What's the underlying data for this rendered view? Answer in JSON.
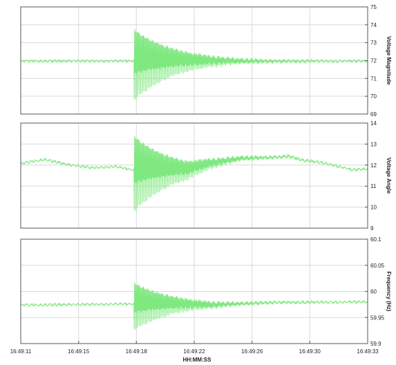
{
  "figure": {
    "xlabel": "HH:MM:SS",
    "x_ticks": [
      "16:49:11",
      "16:49:15",
      "16:49:18",
      "16:49:22",
      "16:49:26",
      "16:49:30",
      "16:49:33"
    ],
    "line_color": "#7fe87f",
    "axis_color": "#555555",
    "grid_color": "#d8d8d8"
  },
  "chart_data": [
    {
      "type": "line",
      "ylabel": "Voltage Magnitude",
      "ylim": [
        69,
        75
      ],
      "y_ticks": [
        "69",
        "70",
        "71",
        "72",
        "73",
        "74",
        "75"
      ],
      "xlim": [
        0,
        22
      ],
      "x_ticks_seconds": [
        0,
        3.67,
        7.33,
        11,
        14.67,
        18.33,
        22
      ],
      "series": [
        {
          "baseline": 72.0,
          "event_time_s": 7.2,
          "decaying_oscillation": {
            "initial_amplitude": 2.2,
            "period_s": 0.2,
            "decay_time_constant_s": 2.6
          },
          "min": 69.4,
          "max": 74.0
        }
      ]
    },
    {
      "type": "line",
      "ylabel": "Voltage Angle",
      "ylim": [
        9,
        14
      ],
      "y_ticks": [
        "9",
        "10",
        "11",
        "12",
        "13",
        "14"
      ],
      "xlim": [
        0,
        22
      ],
      "series": [
        {
          "pre_event_points": [
            [
              0,
              12.1
            ],
            [
              1.5,
              12.3
            ],
            [
              3,
              12.05
            ],
            [
              4.5,
              11.9
            ],
            [
              6,
              11.95
            ],
            [
              7.1,
              11.8
            ]
          ],
          "post_event_points": [
            [
              10.5,
              11.8
            ],
            [
              12,
              12.1
            ],
            [
              14,
              12.35
            ],
            [
              16,
              12.4
            ],
            [
              17,
              12.45
            ],
            [
              18,
              12.25
            ],
            [
              19.5,
              12.1
            ],
            [
              21,
              11.8
            ],
            [
              22,
              11.85
            ]
          ],
          "event_time_s": 7.2,
          "decaying_oscillation": {
            "initial_amplitude": 2.0,
            "period_s": 0.2,
            "decay_time_constant_s": 2.4
          },
          "min": 9.6,
          "max": 13.5
        }
      ]
    },
    {
      "type": "line",
      "ylabel": "Frequency (Hz)",
      "ylim": [
        59.9,
        60.1
      ],
      "y_ticks": [
        "59.9",
        "59.95",
        "60",
        "60.05",
        "60.1"
      ],
      "xlim": [
        0,
        22
      ],
      "series": [
        {
          "baseline_points": [
            [
              0,
              59.975
            ],
            [
              7.1,
              59.977
            ],
            [
              12,
              59.975
            ],
            [
              16,
              59.98
            ],
            [
              22,
              59.981
            ]
          ],
          "event_time_s": 7.2,
          "decaying_oscillation": {
            "initial_amplitude": 0.05,
            "period_s": 0.2,
            "decay_time_constant_s": 2.5
          },
          "min": 59.925,
          "max": 60.035
        }
      ]
    }
  ]
}
